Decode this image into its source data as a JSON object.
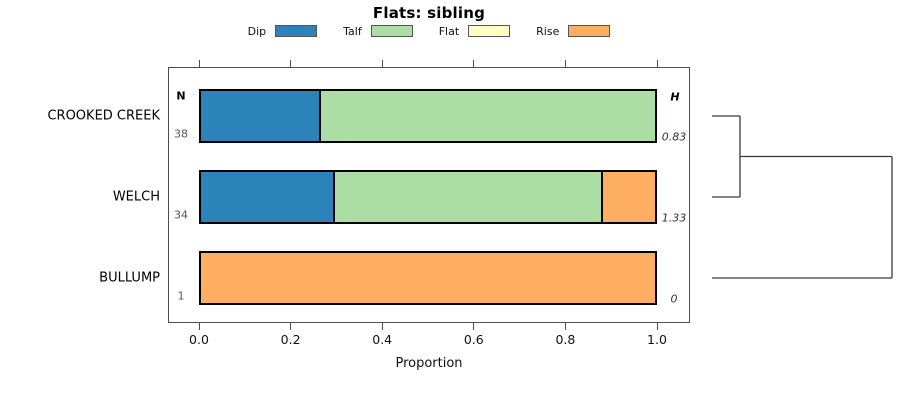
{
  "title": "Flats: sibling",
  "xlabel": "Proportion",
  "columns": {
    "n_header": "N",
    "h_header": "H"
  },
  "legend": {
    "items": [
      {
        "label": "Dip",
        "color": "#2B83BA"
      },
      {
        "label": "Talf",
        "color": "#ABDDA4"
      },
      {
        "label": "Flat",
        "color": "#FFFFBF"
      },
      {
        "label": "Rise",
        "color": "#FDAE61"
      }
    ]
  },
  "chart_data": {
    "type": "bar",
    "orientation": "horizontal-stacked",
    "title": "Flats: sibling",
    "xlabel": "Proportion",
    "xlim": [
      0,
      1
    ],
    "x_tick_values": [
      0.0,
      0.2,
      0.4,
      0.6,
      0.8,
      1.0
    ],
    "x_tick_labels": [
      "0.0",
      "0.2",
      "0.4",
      "0.6",
      "0.8",
      "1.0"
    ],
    "grid": false,
    "legend_position": "top",
    "categories": [
      "CROOKED CREEK",
      "WELCH",
      "BULLUMP"
    ],
    "series": [
      {
        "name": "Dip",
        "color": "#2B83BA",
        "values": [
          0.26,
          0.29,
          0
        ]
      },
      {
        "name": "Talf",
        "color": "#ABDDA4",
        "values": [
          0.74,
          0.59,
          0
        ]
      },
      {
        "name": "Flat",
        "color": "#FFFFBF",
        "values": [
          0,
          0,
          0
        ]
      },
      {
        "name": "Rise",
        "color": "#FDAE61",
        "values": [
          0,
          0.12,
          1.0
        ]
      }
    ],
    "n_values": [
      "38",
      "34",
      "1"
    ],
    "h_values": [
      "0.83",
      "1.33",
      "0"
    ],
    "dendrogram": {
      "merges": [
        {
          "children": [
            "CROOKED CREEK",
            "WELCH"
          ],
          "relative_height": 0.16
        },
        {
          "children": [
            "cluster-1",
            "BULLUMP"
          ],
          "relative_height": 1.0
        }
      ]
    }
  }
}
